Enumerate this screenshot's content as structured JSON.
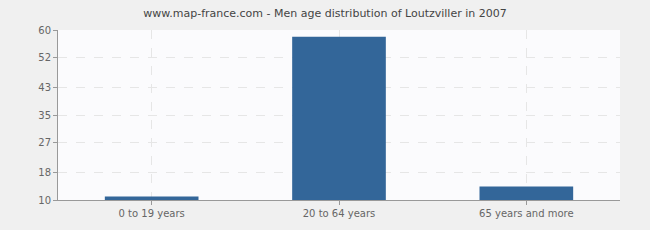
{
  "chart_data": {
    "type": "bar",
    "title": "www.map-france.com - Men age distribution of Loutzviller in 2007",
    "categories": [
      "0 to 19 years",
      "20 to 64 years",
      "65 years and more"
    ],
    "values": [
      11,
      58,
      14
    ],
    "color": "#336699",
    "ylim": [
      10,
      60
    ],
    "yticks": [
      10,
      18,
      27,
      35,
      43,
      52,
      60
    ],
    "grid": true
  }
}
